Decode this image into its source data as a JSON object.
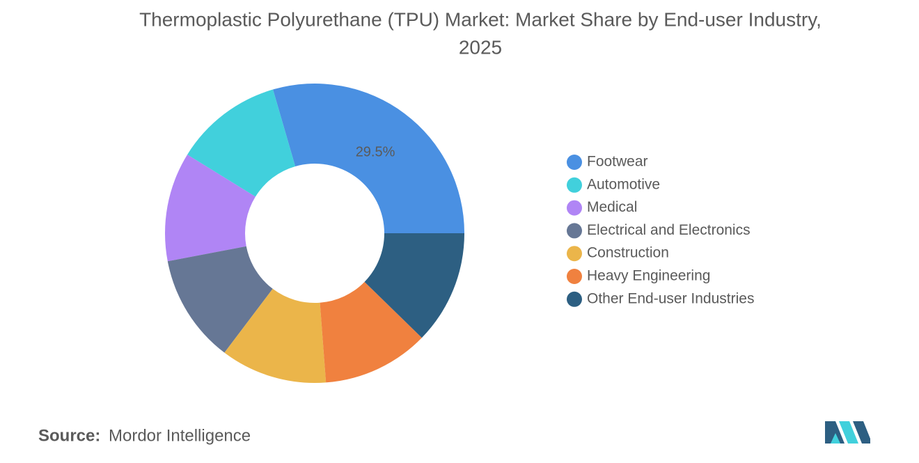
{
  "chart_data": {
    "type": "donut",
    "title": "Thermoplastic Polyurethane (TPU) Market: Market Share by End-user Industry,",
    "subtitle": "2025",
    "categories": [
      "Footwear",
      "Automotive",
      "Medical",
      "Electrical and Electronics",
      "Construction",
      "Heavy Engineering",
      "Other End-user Industries"
    ],
    "values": [
      29.5,
      11.7,
      11.8,
      11.7,
      11.5,
      11.5,
      12.3
    ],
    "value_labels": [
      "29.5%",
      null,
      null,
      null,
      null,
      null,
      null
    ],
    "colors": [
      "#4a90e2",
      "#41d0dc",
      "#b085f5",
      "#667795",
      "#ebb54a",
      "#f0813f",
      "#2d5f82"
    ],
    "legend": "right",
    "source_label": "Source:",
    "source": "Mordor Intelligence"
  }
}
